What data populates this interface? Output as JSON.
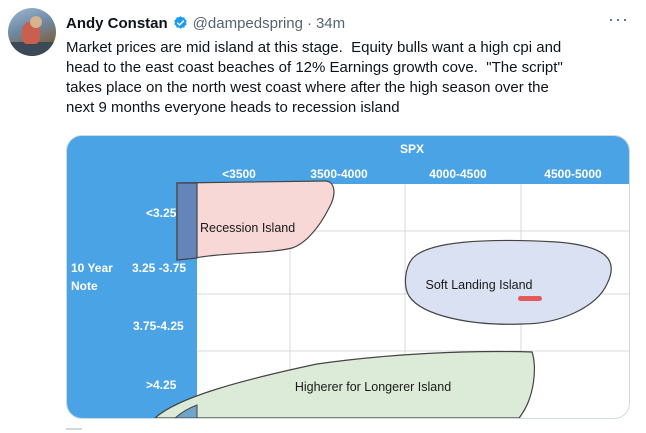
{
  "tweet": {
    "author_name": "Andy Constan",
    "handle": "@dampedspring",
    "dot": "·",
    "time": "34m",
    "more_icon": "more-horizontal-icon",
    "verified_icon": "verified-badge-icon",
    "text": "Market prices are mid island at this stage.  Equity bulls want a high cpi and\nhead to the east coast beaches of 12% Earnings growth cove.  \"The script\"\ntakes place on the north west coast where after the high season over the\nnext 9 months everyone heads to recession island"
  },
  "chart": {
    "top_axis_title": "SPX",
    "columns": [
      "<3500",
      "3500-4000",
      "4000-4500",
      "4500-5000"
    ],
    "left_axis_title_line1": "10 Year",
    "left_axis_title_line2": "Note",
    "rows": [
      "<3.25",
      "3.25 -3.75",
      "3.75-4.25",
      ">4.25"
    ],
    "islands": {
      "recession": "Recession Island",
      "soft_landing": "Soft Landing Island",
      "higher": "Higherer for Longerer Island"
    },
    "colors": {
      "axis_band": "#4aa3e4",
      "recession_fill": "#f8d7d7",
      "soft_fill": "#d9e1f2",
      "higher_fill": "#dcebd7",
      "marker_highlight": "#6585b9",
      "red_marker": "#e45a5a"
    }
  }
}
